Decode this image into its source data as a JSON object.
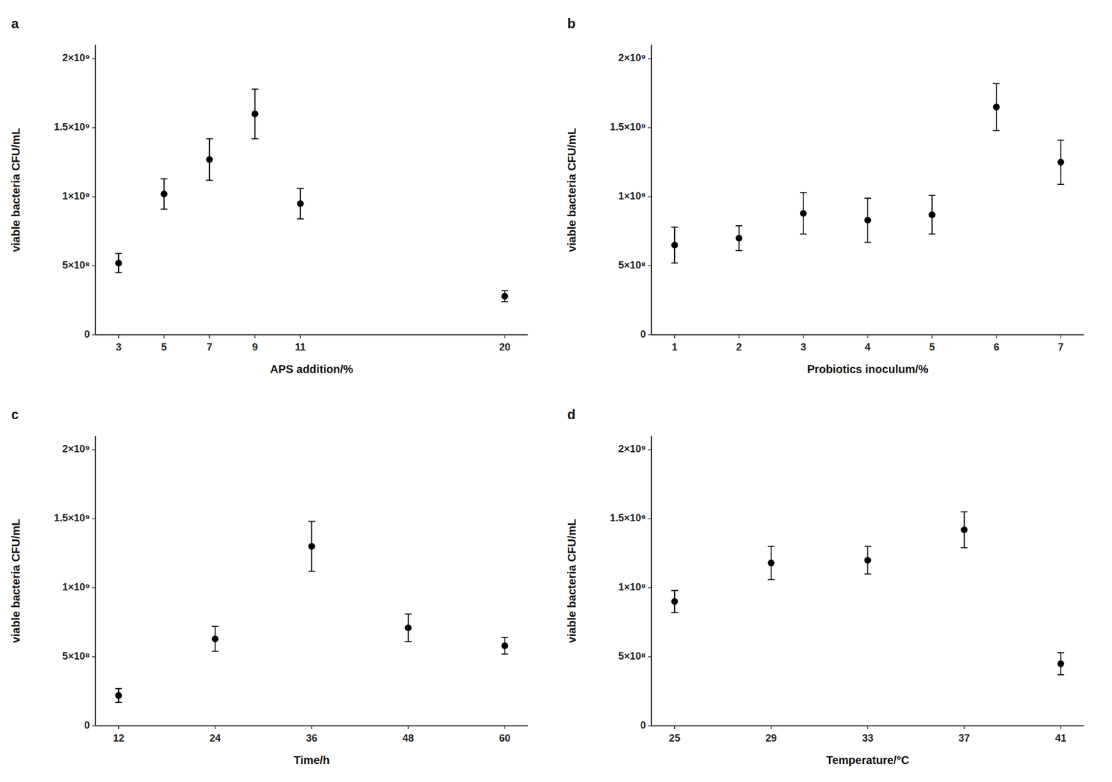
{
  "chart_data": [
    {
      "type": "scatter",
      "title": "a",
      "xlabel": "APS addition/%",
      "ylabel": "viable bacteria  CFU/mL",
      "x": [
        3,
        5,
        7,
        9,
        11,
        20
      ],
      "values": [
        520000000.0,
        1020000000.0,
        1270000000.0,
        1600000000.0,
        950000000.0,
        280000000.0
      ],
      "yerr": [
        70000000.0,
        110000000.0,
        150000000.0,
        180000000.0,
        110000000.0,
        40000000.0
      ],
      "xlim": [
        1.98,
        21.02
      ],
      "xticks": [
        3,
        5,
        7,
        9,
        11,
        20
      ],
      "ylim": [
        0,
        2100000000.0
      ],
      "yticks": [
        0,
        {
          "value": 500000000.0,
          "label": "5×10⁸"
        },
        {
          "value": 1000000000.0,
          "label": "1×10⁹"
        },
        {
          "value": 1500000000.0,
          "label": "1.5×10⁹"
        },
        {
          "value": 2000000000.0,
          "label": "2×10⁹"
        }
      ],
      "color": "#000000",
      "marker": "circle",
      "grid": false
    },
    {
      "type": "scatter",
      "title": "b",
      "xlabel": "Probiotics inoculum/%",
      "ylabel": "viable bacteria  CFU/mL",
      "x": [
        1,
        2,
        3,
        4,
        5,
        6,
        7
      ],
      "values": [
        650000000.0,
        700000000.0,
        880000000.0,
        830000000.0,
        870000000.0,
        1650000000.0,
        1250000000.0
      ],
      "yerr": [
        130000000.0,
        90000000.0,
        150000000.0,
        160000000.0,
        140000000.0,
        170000000.0,
        160000000.0
      ],
      "xlim": [
        0.64,
        7.36
      ],
      "xticks": [
        1,
        2,
        3,
        4,
        5,
        6,
        7
      ],
      "ylim": [
        0,
        2100000000.0
      ],
      "yticks": [
        0,
        {
          "value": 500000000.0,
          "label": "5×10⁸"
        },
        {
          "value": 1000000000.0,
          "label": "1×10⁹"
        },
        {
          "value": 1500000000.0,
          "label": "1.5×10⁹"
        },
        {
          "value": 2000000000.0,
          "label": "2×10⁹"
        }
      ],
      "color": "#000000",
      "marker": "circle",
      "grid": false
    },
    {
      "type": "scatter",
      "title": "c",
      "xlabel": "Time/h",
      "ylabel": "viable bacteria  CFU/mL",
      "x": [
        12,
        24,
        36,
        48,
        60
      ],
      "values": [
        220000000.0,
        630000000.0,
        1300000000.0,
        710000000.0,
        580000000.0
      ],
      "yerr": [
        50000000.0,
        90000000.0,
        180000000.0,
        100000000.0,
        60000000.0
      ],
      "xlim": [
        9.12,
        62.88
      ],
      "xticks": [
        12,
        24,
        36,
        48,
        60
      ],
      "ylim": [
        0,
        2100000000.0
      ],
      "yticks": [
        0,
        {
          "value": 500000000.0,
          "label": "5×10⁸"
        },
        {
          "value": 1000000000.0,
          "label": "1×10⁹"
        },
        {
          "value": 1500000000.0,
          "label": "1.5×10⁹"
        },
        {
          "value": 2000000000.0,
          "label": "2×10⁹"
        }
      ],
      "color": "#000000",
      "marker": "circle",
      "grid": false
    },
    {
      "type": "scatter",
      "title": "d",
      "xlabel": "Temperature/°C",
      "ylabel": "viable bacteria  CFU/mL",
      "x": [
        25,
        29,
        33,
        37,
        41
      ],
      "values": [
        900000000.0,
        1180000000.0,
        1200000000.0,
        1420000000.0,
        450000000.0
      ],
      "yerr": [
        80000000.0,
        120000000.0,
        100000000.0,
        130000000.0,
        80000000.0
      ],
      "xlim": [
        24.04,
        41.96
      ],
      "xticks": [
        25,
        29,
        33,
        37,
        41
      ],
      "ylim": [
        0,
        2100000000.0
      ],
      "yticks": [
        0,
        {
          "value": 500000000.0,
          "label": "5×10⁸"
        },
        {
          "value": 1000000000.0,
          "label": "1×10⁹"
        },
        {
          "value": 1500000000.0,
          "label": "1.5×10⁹"
        },
        {
          "value": 2000000000.0,
          "label": "2×10⁹"
        }
      ],
      "color": "#000000",
      "marker": "circle",
      "grid": false
    }
  ]
}
